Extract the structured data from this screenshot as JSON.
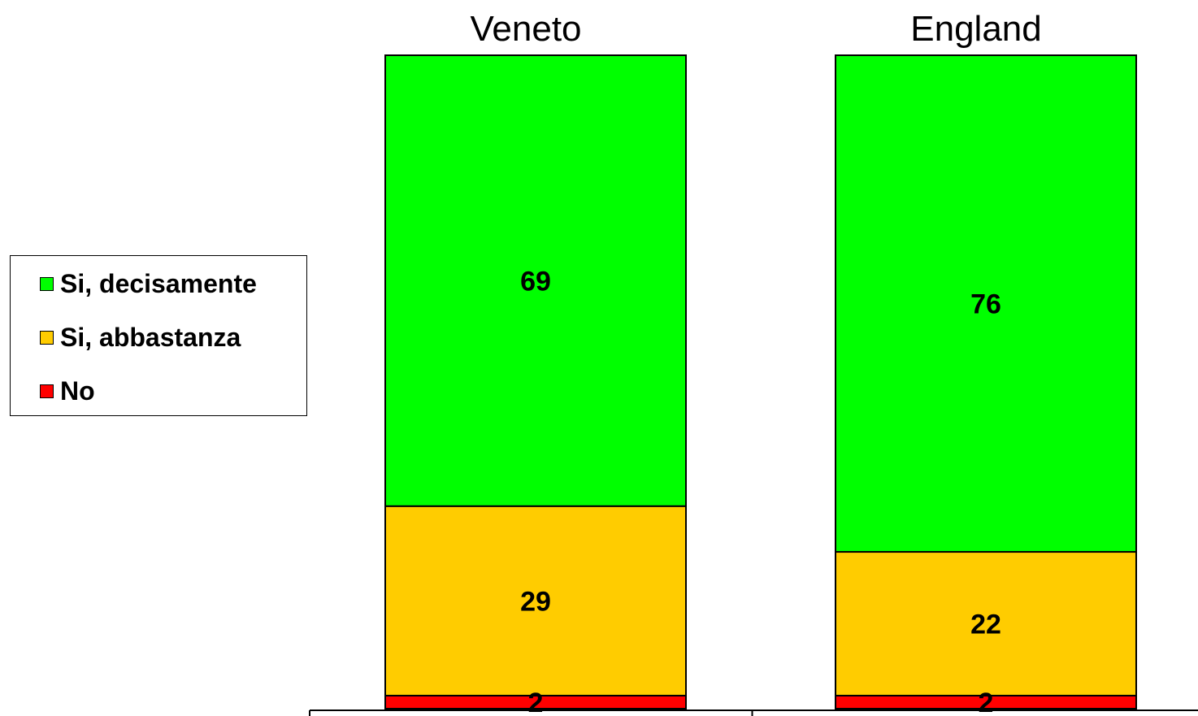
{
  "chart_data": {
    "type": "bar",
    "stacked": true,
    "percent": true,
    "categories": [
      "Veneto",
      "England"
    ],
    "series": [
      {
        "name": "No",
        "values": [
          2,
          2
        ],
        "color": "#ff0000"
      },
      {
        "name": "Si, abbastanza",
        "values": [
          29,
          22
        ],
        "color": "#ffcc00"
      },
      {
        "name": "Si, decisamente",
        "values": [
          69,
          76
        ],
        "color": "#00ff00"
      }
    ],
    "ylim": [
      0,
      100
    ],
    "legend": {
      "position": "left",
      "entries": [
        "Si, decisamente",
        "Si, abbastanza",
        "No"
      ]
    },
    "data_labels": true,
    "grid": false
  }
}
